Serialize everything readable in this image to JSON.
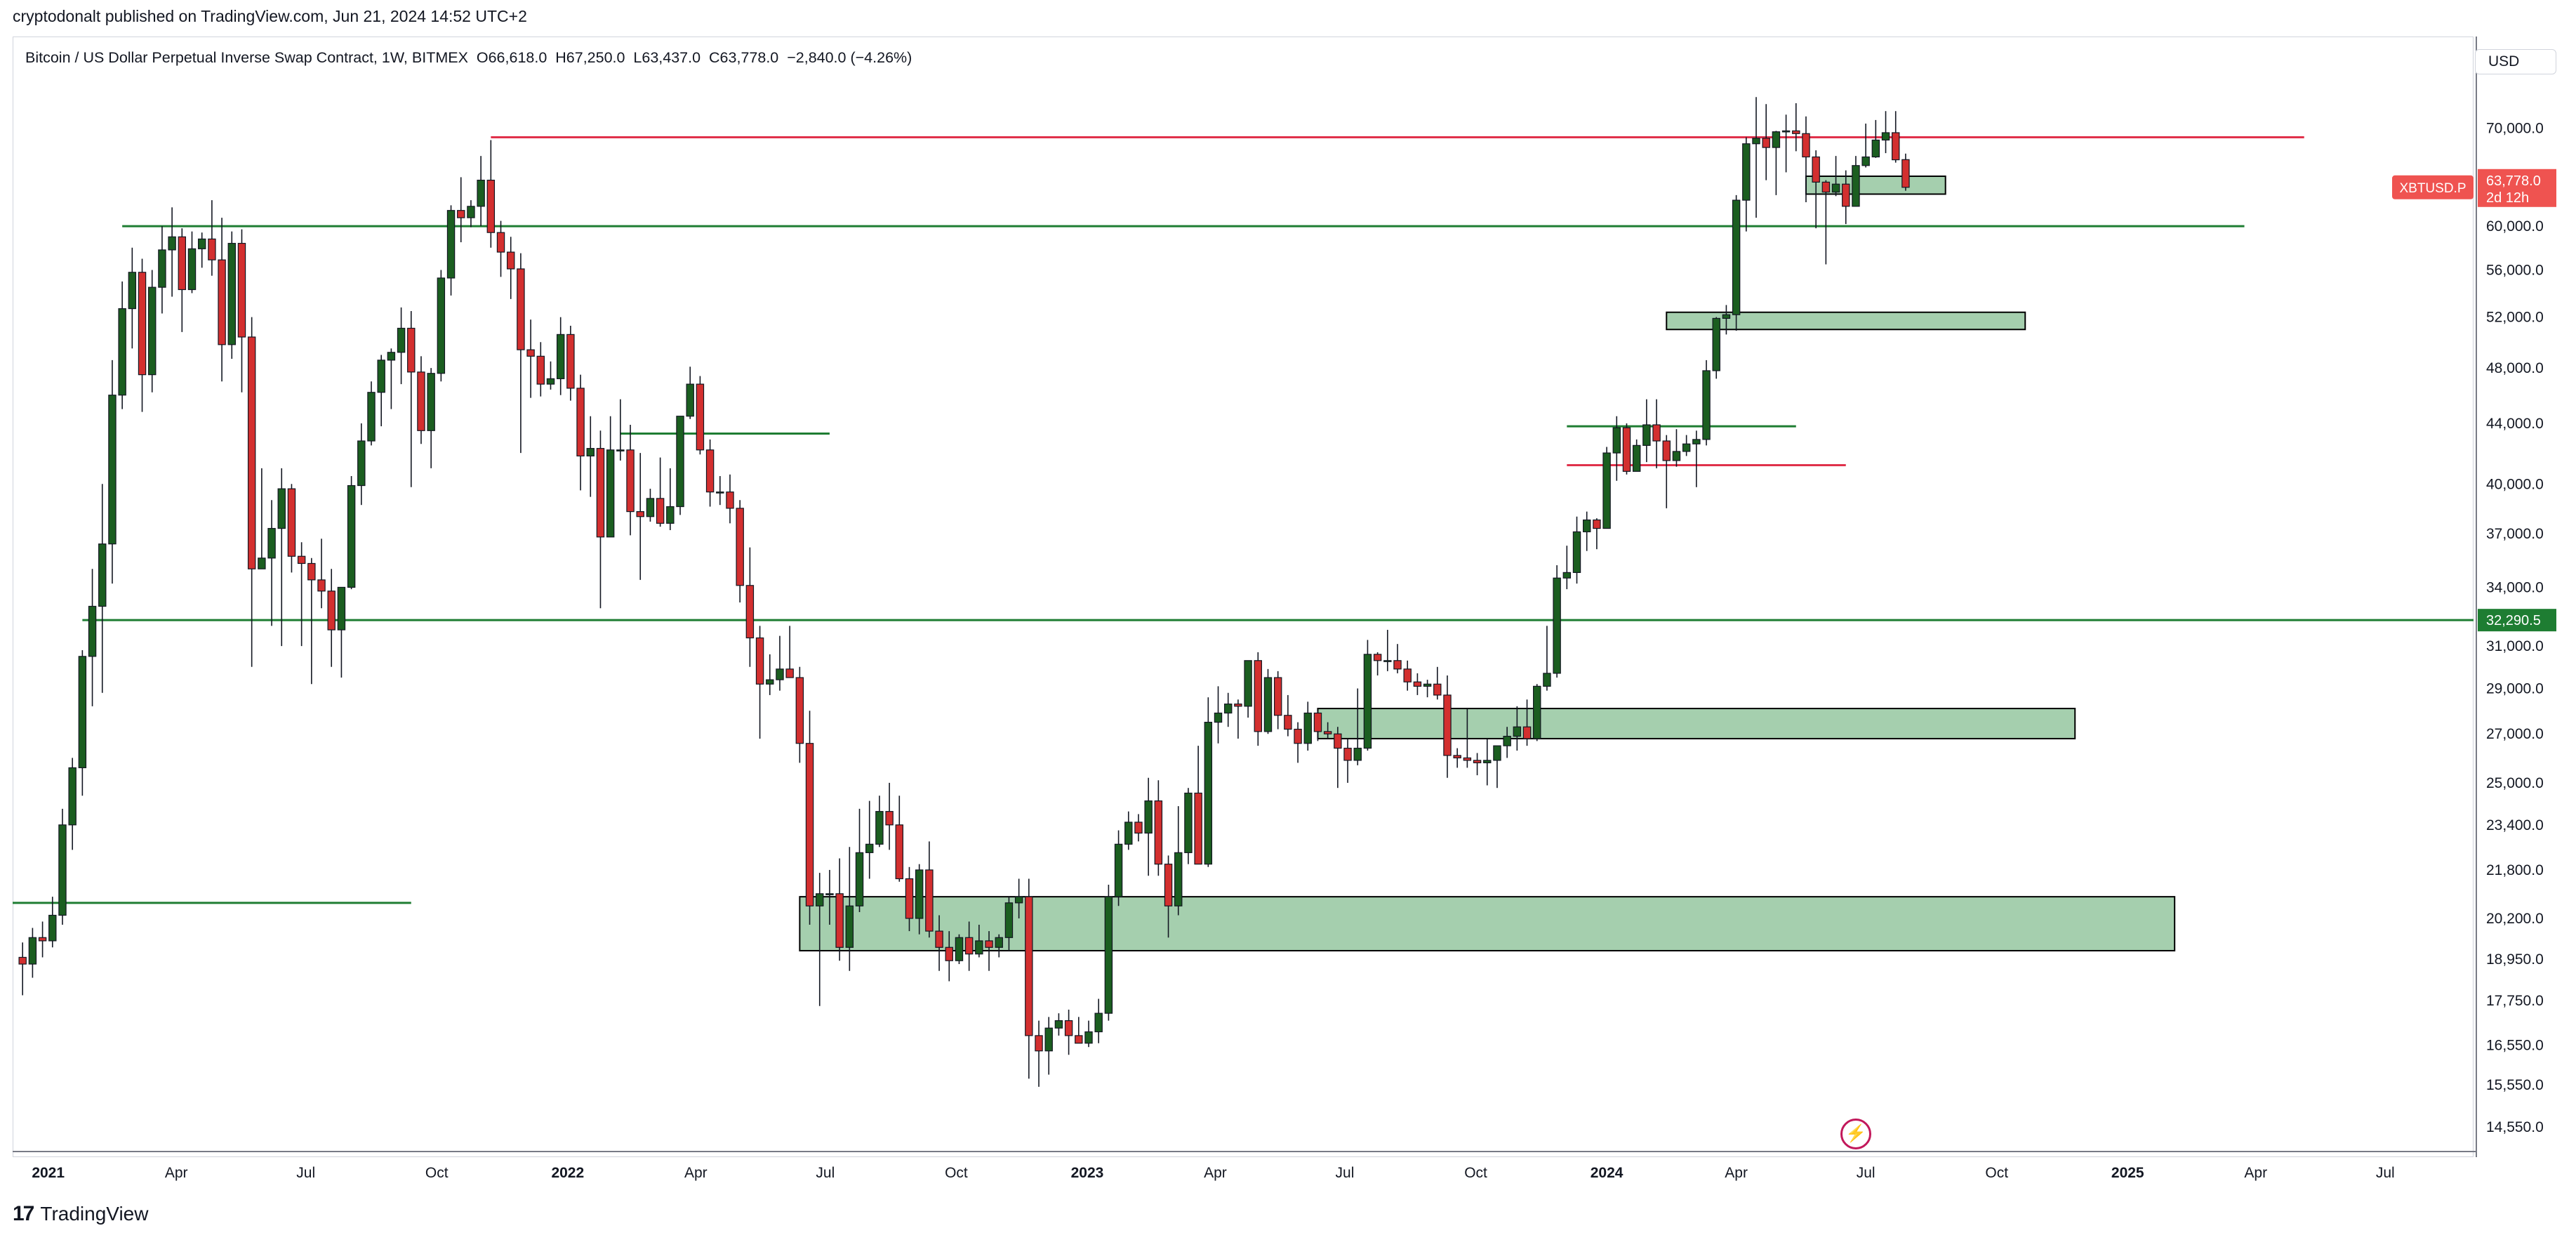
{
  "header": {
    "published_line": "cryptodonalt published on TradingView.com, Jun 21, 2024 14:52 UTC+2"
  },
  "legend": {
    "symbol_desc": "Bitcoin / US Dollar Perpetual Inverse Swap Contract, 1W, BITMEX",
    "open": "O66,618.0",
    "high": "H67,250.0",
    "low": "L63,437.0",
    "close": "C63,778.0",
    "change": "−2,840.0 (−4.26%)"
  },
  "scale": {
    "currency_button": "USD"
  },
  "footer": {
    "brand": "TradingView",
    "logo_text": "17"
  },
  "colors": {
    "up": "#1b5e20",
    "down": "#d32f2f",
    "green_line": "#1e7d32",
    "red_line": "#e0314b",
    "zone_fill": "#a5cfae",
    "zone_border": "#000000",
    "price_tag": "#ef5350",
    "level_tag": "#1e7d32"
  },
  "icons": {
    "snapshot": "lightning-icon"
  },
  "chart_data": {
    "type": "candlestick",
    "symbol": "XBTUSD.P",
    "interval": "1W",
    "x_start": "2020-12-07",
    "x_end": "2025-09-01",
    "ylim": [
      14000,
      76000
    ],
    "log_scale": true,
    "y_ticks": [
      "70,000.0",
      "60,000.0",
      "56,000.0",
      "52,000.0",
      "48,000.0",
      "44,000.0",
      "40,000.0",
      "37,000.0",
      "34,000.0",
      "31,000.0",
      "29,000.0",
      "27,000.0",
      "25,000.0",
      "23,400.0",
      "21,800.0",
      "20,200.0",
      "18,950.0",
      "17,750.0",
      "16,550.0",
      "15,550.0",
      "14,550.0"
    ],
    "y_tick_values": [
      70000,
      60000,
      56000,
      52000,
      48000,
      44000,
      40000,
      37000,
      34000,
      31000,
      29000,
      27000,
      25000,
      23400,
      21800,
      20200,
      18950,
      17750,
      16550,
      15550,
      14550
    ],
    "x_ticks": [
      {
        "label": "2021",
        "date": "2021-01-01",
        "bold": true
      },
      {
        "label": "Apr",
        "date": "2021-04-01"
      },
      {
        "label": "Jul",
        "date": "2021-07-01"
      },
      {
        "label": "Oct",
        "date": "2021-10-01"
      },
      {
        "label": "2022",
        "date": "2022-01-01",
        "bold": true
      },
      {
        "label": "Apr",
        "date": "2022-04-01"
      },
      {
        "label": "Jul",
        "date": "2022-07-01"
      },
      {
        "label": "Oct",
        "date": "2022-10-01"
      },
      {
        "label": "2023",
        "date": "2023-01-01",
        "bold": true
      },
      {
        "label": "Apr",
        "date": "2023-04-01"
      },
      {
        "label": "Jul",
        "date": "2023-07-01"
      },
      {
        "label": "Oct",
        "date": "2023-10-01"
      },
      {
        "label": "2024",
        "date": "2024-01-01",
        "bold": true
      },
      {
        "label": "Apr",
        "date": "2024-04-01"
      },
      {
        "label": "Jul",
        "date": "2024-07-01"
      },
      {
        "label": "Oct",
        "date": "2024-10-01"
      },
      {
        "label": "2025",
        "date": "2025-01-01",
        "bold": true
      },
      {
        "label": "Apr",
        "date": "2025-04-01"
      },
      {
        "label": "Jul",
        "date": "2025-07-01"
      }
    ],
    "first_bar_date": "2020-12-14",
    "bars": [
      [
        19000,
        19450,
        17900,
        18800
      ],
      [
        18800,
        19900,
        18400,
        19600
      ],
      [
        19600,
        20100,
        19000,
        19500
      ],
      [
        19500,
        20900,
        19300,
        20300
      ],
      [
        20300,
        24000,
        20000,
        23400
      ],
      [
        23400,
        26000,
        22500,
        25600
      ],
      [
        25600,
        30800,
        24500,
        30500
      ],
      [
        30500,
        35000,
        28200,
        33000
      ],
      [
        33000,
        40000,
        28800,
        36400
      ],
      [
        36400,
        48600,
        34200,
        46000
      ],
      [
        46000,
        55000,
        45000,
        52700
      ],
      [
        52700,
        58000,
        49500,
        55800
      ],
      [
        55800,
        57000,
        44800,
        47500
      ],
      [
        47500,
        56000,
        46200,
        54500
      ],
      [
        54500,
        60000,
        52300,
        57800
      ],
      [
        57800,
        61800,
        53700,
        59000
      ],
      [
        59000,
        59800,
        50800,
        54300
      ],
      [
        54300,
        59500,
        54000,
        57900
      ],
      [
        57900,
        59400,
        56200,
        58800
      ],
      [
        58800,
        62500,
        55500,
        56900
      ],
      [
        56900,
        60800,
        47000,
        49800
      ],
      [
        49800,
        59500,
        48700,
        58400
      ],
      [
        58400,
        59700,
        46200,
        50400
      ],
      [
        50400,
        52000,
        30000,
        35000
      ],
      [
        35000,
        41000,
        35000,
        35600
      ],
      [
        35600,
        39000,
        32000,
        37300
      ],
      [
        37300,
        41000,
        31000,
        39700
      ],
      [
        39700,
        40000,
        34800,
        35700
      ],
      [
        35700,
        36500,
        31000,
        35300
      ],
      [
        35300,
        35600,
        29200,
        34400
      ],
      [
        34400,
        36700,
        32900,
        33800
      ],
      [
        33800,
        35000,
        30000,
        31800
      ],
      [
        31800,
        34000,
        29500,
        34000
      ],
      [
        34000,
        40500,
        33900,
        39900
      ],
      [
        39900,
        44000,
        38700,
        42800
      ],
      [
        42800,
        47000,
        42500,
        46200
      ],
      [
        46200,
        49000,
        43800,
        48600
      ],
      [
        48600,
        49500,
        45000,
        49200
      ],
      [
        49200,
        52800,
        46800,
        51100
      ],
      [
        51100,
        52500,
        39800,
        47700
      ],
      [
        47700,
        48900,
        42600,
        43500
      ],
      [
        43500,
        48000,
        41000,
        47600
      ],
      [
        47600,
        56000,
        47000,
        55300
      ],
      [
        55300,
        62000,
        53800,
        61500
      ],
      [
        61500,
        64800,
        58500,
        60800
      ],
      [
        60800,
        62500,
        59900,
        61900
      ],
      [
        61900,
        67000,
        60000,
        64500
      ],
      [
        64500,
        68700,
        58000,
        59400
      ],
      [
        59400,
        60500,
        55400,
        57600
      ],
      [
        57600,
        59000,
        53500,
        56100
      ],
      [
        56100,
        57500,
        42000,
        49400
      ],
      [
        49400,
        51800,
        45800,
        48900
      ],
      [
        48900,
        50000,
        45900,
        46800
      ],
      [
        46800,
        48500,
        46400,
        47200
      ],
      [
        47200,
        52000,
        46000,
        50600
      ],
      [
        50600,
        51300,
        45600,
        46500
      ],
      [
        46500,
        47500,
        39600,
        41800
      ],
      [
        41800,
        44500,
        39200,
        42300
      ],
      [
        42300,
        43500,
        32900,
        36800
      ],
      [
        36800,
        44500,
        36800,
        42200
      ],
      [
        42200,
        45700,
        41500,
        42200
      ],
      [
        42200,
        43900,
        36900,
        38300
      ],
      [
        38300,
        42000,
        34400,
        38000
      ],
      [
        38000,
        39700,
        37700,
        39100
      ],
      [
        39100,
        41700,
        37400,
        37600
      ],
      [
        37600,
        41000,
        37200,
        38600
      ],
      [
        38600,
        44000,
        38100,
        44500
      ],
      [
        44500,
        48100,
        44300,
        46800
      ],
      [
        46800,
        47400,
        41900,
        42200
      ],
      [
        42200,
        42900,
        38600,
        39500
      ],
      [
        39500,
        40500,
        38700,
        39500
      ],
      [
        39500,
        40600,
        37600,
        38500
      ],
      [
        38500,
        39000,
        33200,
        34100
      ],
      [
        34100,
        36200,
        30000,
        31400
      ],
      [
        31400,
        32000,
        26800,
        29200
      ],
      [
        29200,
        30600,
        28700,
        29400
      ],
      [
        29400,
        31500,
        28900,
        29900
      ],
      [
        29900,
        32000,
        29500,
        29500
      ],
      [
        29500,
        30000,
        25800,
        26600
      ],
      [
        26600,
        28000,
        20000,
        20600
      ],
      [
        20600,
        21700,
        17600,
        21000
      ],
      [
        21000,
        21800,
        20000,
        21000
      ],
      [
        21000,
        22200,
        18900,
        19300
      ],
      [
        19300,
        22600,
        18600,
        20600
      ],
      [
        20600,
        24000,
        20400,
        22400
      ],
      [
        22400,
        24300,
        21500,
        22700
      ],
      [
        22700,
        24500,
        22600,
        23900
      ],
      [
        23900,
        25000,
        22500,
        23400
      ],
      [
        23400,
        24500,
        21400,
        21500
      ],
      [
        21500,
        21900,
        19800,
        20200
      ],
      [
        20200,
        22000,
        19700,
        21800
      ],
      [
        21800,
        22800,
        19600,
        19800
      ],
      [
        19800,
        20300,
        18600,
        19300
      ],
      [
        19300,
        19800,
        18300,
        18900
      ],
      [
        18900,
        19700,
        18800,
        19600
      ],
      [
        19600,
        20100,
        18600,
        19100
      ],
      [
        19100,
        20000,
        19000,
        19500
      ],
      [
        19500,
        19800,
        18600,
        19300
      ],
      [
        19300,
        19700,
        19000,
        19600
      ],
      [
        19600,
        20900,
        19200,
        20700
      ],
      [
        20700,
        21500,
        20200,
        20900
      ],
      [
        20900,
        21500,
        15700,
        16800
      ],
      [
        16800,
        17200,
        15500,
        16400
      ],
      [
        16400,
        17300,
        15800,
        17000
      ],
      [
        17000,
        17400,
        16800,
        17200
      ],
      [
        17200,
        17500,
        16300,
        16800
      ],
      [
        16800,
        17300,
        16600,
        16600
      ],
      [
        16600,
        17200,
        16500,
        16900
      ],
      [
        16900,
        17800,
        16600,
        17400
      ],
      [
        17400,
        21300,
        17200,
        20900
      ],
      [
        20900,
        23200,
        20600,
        22700
      ],
      [
        22700,
        23900,
        22500,
        23500
      ],
      [
        23500,
        23800,
        22800,
        23100
      ],
      [
        23100,
        25200,
        21600,
        24300
      ],
      [
        24300,
        25100,
        21600,
        22000
      ],
      [
        22000,
        22300,
        19600,
        20600
      ],
      [
        20600,
        24100,
        20300,
        22400
      ],
      [
        22400,
        24800,
        22000,
        24600
      ],
      [
        24600,
        26500,
        22200,
        22000
      ],
      [
        22000,
        28600,
        21900,
        27500
      ],
      [
        27500,
        29100,
        26600,
        27900
      ],
      [
        27900,
        28800,
        27300,
        28300
      ],
      [
        28300,
        28500,
        26800,
        28200
      ],
      [
        28200,
        30300,
        27700,
        30300
      ],
      [
        30300,
        30700,
        26500,
        27100
      ],
      [
        27100,
        29900,
        27000,
        29500
      ],
      [
        29500,
        29800,
        27200,
        27800
      ],
      [
        27800,
        28700,
        26900,
        27200
      ],
      [
        27200,
        27500,
        25800,
        26600
      ],
      [
        26600,
        28400,
        26300,
        27900
      ],
      [
        27900,
        28000,
        26700,
        27100
      ],
      [
        27100,
        27500,
        26800,
        27000
      ],
      [
        27000,
        27300,
        24800,
        26400
      ],
      [
        26400,
        26800,
        25000,
        25900
      ],
      [
        25900,
        29000,
        25700,
        26400
      ],
      [
        26400,
        31300,
        26300,
        30600
      ],
      [
        30600,
        30700,
        29600,
        30300
      ],
      [
        30300,
        31800,
        29800,
        30300
      ],
      [
        30300,
        31100,
        29700,
        29900
      ],
      [
        29900,
        30300,
        28900,
        29300
      ],
      [
        29300,
        29700,
        28700,
        29100
      ],
      [
        29100,
        29400,
        28600,
        29200
      ],
      [
        29200,
        30000,
        28500,
        28700
      ],
      [
        28700,
        29600,
        25200,
        26100
      ],
      [
        26100,
        26400,
        25600,
        26000
      ],
      [
        26000,
        28100,
        25600,
        25900
      ],
      [
        25900,
        26200,
        25300,
        25800
      ],
      [
        25800,
        26800,
        24900,
        25900
      ],
      [
        25900,
        26300,
        24800,
        26500
      ],
      [
        26500,
        27300,
        26000,
        26900
      ],
      [
        26900,
        28200,
        26300,
        27300
      ],
      [
        27300,
        28500,
        26500,
        26800
      ],
      [
        26800,
        29200,
        26700,
        29100
      ],
      [
        29100,
        32000,
        28900,
        29700
      ],
      [
        29700,
        35200,
        29500,
        34500
      ],
      [
        34500,
        36300,
        33900,
        34800
      ],
      [
        34800,
        38000,
        34200,
        37100
      ],
      [
        37100,
        38300,
        36000,
        37800
      ],
      [
        37800,
        37900,
        36100,
        37300
      ],
      [
        37300,
        42400,
        37600,
        42000
      ],
      [
        42000,
        44500,
        40200,
        43700
      ],
      [
        43700,
        44000,
        40600,
        40800
      ],
      [
        40800,
        42900,
        41100,
        42500
      ],
      [
        42500,
        45700,
        41400,
        43900
      ],
      [
        43900,
        45700,
        41000,
        42800
      ],
      [
        42800,
        43200,
        38500,
        41500
      ],
      [
        41500,
        43600,
        41100,
        42100
      ],
      [
        42100,
        43200,
        41800,
        42600
      ],
      [
        42600,
        43500,
        39800,
        42900
      ],
      [
        42900,
        48600,
        42500,
        47800
      ],
      [
        47800,
        52000,
        47200,
        51900
      ],
      [
        51900,
        53000,
        50600,
        52200
      ],
      [
        52200,
        63000,
        50900,
        62500
      ],
      [
        62500,
        69000,
        59500,
        68300
      ],
      [
        68300,
        73500,
        60800,
        68900
      ],
      [
        68900,
        72700,
        64500,
        67900
      ],
      [
        67900,
        69700,
        63000,
        69600
      ],
      [
        69600,
        71500,
        65300,
        69700
      ],
      [
        69700,
        72800,
        67500,
        69400
      ],
      [
        69400,
        71300,
        62300,
        66900
      ],
      [
        66900,
        67600,
        59800,
        64300
      ],
      [
        64300,
        64500,
        56500,
        63300
      ],
      [
        63300,
        67000,
        62900,
        64100
      ],
      [
        64100,
        65500,
        60200,
        61900
      ],
      [
        61900,
        67000,
        61900,
        66000
      ],
      [
        66000,
        70500,
        65800,
        66900
      ],
      [
        66900,
        70900,
        66800,
        68700
      ],
      [
        68700,
        71900,
        67300,
        69500
      ],
      [
        69500,
        71900,
        66300,
        66600
      ],
      [
        66618,
        67250,
        63437,
        63778
      ]
    ],
    "horizontal_lines": [
      {
        "color": "red",
        "price": 69000,
        "from": "2021-11-08",
        "to": "2025-05-05"
      },
      {
        "color": "green",
        "price": 60000,
        "from": "2021-02-22",
        "to": "2025-03-24"
      },
      {
        "color": "green",
        "price": 43300,
        "from": "2022-02-07",
        "to": "2022-07-04"
      },
      {
        "color": "green",
        "price": 43800,
        "from": "2023-12-04",
        "to": "2024-05-13"
      },
      {
        "color": "red",
        "price": 41200,
        "from": "2023-12-04",
        "to": "2024-06-17"
      },
      {
        "color": "green",
        "price": 32290.5,
        "from": "2021-01-25",
        "to": "2025-09-01"
      },
      {
        "color": "green",
        "price": 20700,
        "from": "2020-12-07",
        "to": "2021-09-13"
      }
    ],
    "zones": [
      {
        "top": 64900,
        "bottom": 63100,
        "from": "2024-05-20",
        "to": "2024-08-26"
      },
      {
        "top": 52400,
        "bottom": 51000,
        "from": "2024-02-12",
        "to": "2024-10-21"
      },
      {
        "top": 28100,
        "bottom": 26800,
        "from": "2023-06-12",
        "to": "2024-11-25"
      },
      {
        "top": 20900,
        "bottom": 19200,
        "from": "2022-06-13",
        "to": "2025-02-03"
      }
    ],
    "price_label": {
      "ticker": "XBTUSD.P",
      "price": "63,778.0",
      "countdown": "2d 12h",
      "value": 63778
    },
    "level_label": {
      "price": "32,290.5",
      "value": 32290.5
    }
  }
}
